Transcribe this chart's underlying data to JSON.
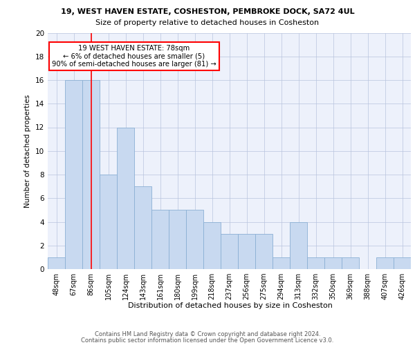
{
  "title1": "19, WEST HAVEN ESTATE, COSHESTON, PEMBROKE DOCK, SA72 4UL",
  "title2": "Size of property relative to detached houses in Cosheston",
  "xlabel": "Distribution of detached houses by size in Cosheston",
  "ylabel": "Number of detached properties",
  "categories": [
    "48sqm",
    "67sqm",
    "86sqm",
    "105sqm",
    "124sqm",
    "143sqm",
    "161sqm",
    "180sqm",
    "199sqm",
    "218sqm",
    "237sqm",
    "256sqm",
    "275sqm",
    "294sqm",
    "313sqm",
    "332sqm",
    "350sqm",
    "369sqm",
    "388sqm",
    "407sqm",
    "426sqm"
  ],
  "values": [
    1,
    16,
    16,
    8,
    12,
    7,
    5,
    5,
    5,
    4,
    3,
    3,
    3,
    1,
    4,
    1,
    1,
    1,
    0,
    1,
    1
  ],
  "bar_color": "#c8d9f0",
  "bar_edge_color": "#8bafd4",
  "red_line_x": 2.0,
  "annotation_text": "19 WEST HAVEN ESTATE: 78sqm\n← 6% of detached houses are smaller (5)\n90% of semi-detached houses are larger (81) →",
  "annotation_box_color": "white",
  "annotation_box_edge": "red",
  "ylim": [
    0,
    20
  ],
  "yticks": [
    0,
    2,
    4,
    6,
    8,
    10,
    12,
    14,
    16,
    18,
    20
  ],
  "footer1": "Contains HM Land Registry data © Crown copyright and database right 2024.",
  "footer2": "Contains public sector information licensed under the Open Government Licence v3.0.",
  "bg_color": "#edf1fb"
}
